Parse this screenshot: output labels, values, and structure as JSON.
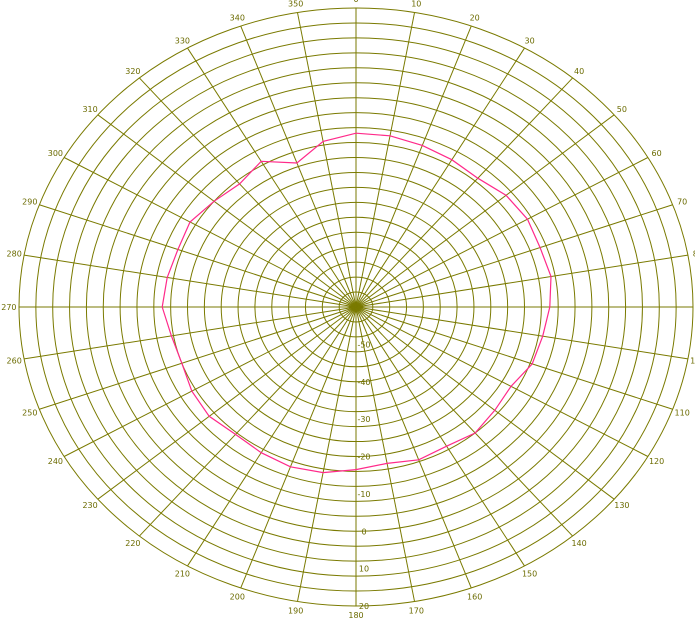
{
  "chart_data": {
    "type": "polar-line",
    "angular_ticks": [
      "0",
      "10",
      "20",
      "30",
      "40",
      "50",
      "60",
      "70",
      "80",
      "90",
      "100",
      "110",
      "120",
      "130",
      "140",
      "150",
      "160",
      "170",
      "180",
      "190",
      "200",
      "210",
      "220",
      "230",
      "240",
      "250",
      "260",
      "270",
      "280",
      "290",
      "300",
      "310",
      "320",
      "330",
      "340",
      "350"
    ],
    "angular_tick_values": [
      0,
      10,
      20,
      30,
      40,
      50,
      60,
      70,
      80,
      90,
      100,
      110,
      120,
      130,
      140,
      150,
      160,
      170,
      180,
      190,
      200,
      210,
      220,
      230,
      240,
      250,
      260,
      270,
      280,
      290,
      300,
      310,
      320,
      330,
      340,
      350
    ],
    "radial_ticks": [
      "-50",
      "-40",
      "-30",
      "-20",
      "-10",
      "0",
      "10",
      "20"
    ],
    "radial_tick_values": [
      -50,
      -40,
      -30,
      -20,
      -10,
      0,
      10,
      20
    ],
    "rlim": [
      -60,
      20
    ],
    "rings": 20,
    "spokes_every_deg": 10,
    "grid": true,
    "colors": {
      "grid": "#7a7a00",
      "series": "#ff2a8a"
    },
    "series": [
      {
        "name": "",
        "angles": [
          0,
          10,
          20,
          30,
          40,
          50,
          60,
          70,
          80,
          90,
          100,
          110,
          120,
          130,
          140,
          150,
          160,
          170,
          180,
          190,
          200,
          210,
          220,
          230,
          240,
          250,
          260,
          270,
          280,
          290,
          300,
          310,
          320,
          330,
          340,
          350,
          360
        ],
        "values": [
          -13.5,
          -13.5,
          -14.0,
          -14.5,
          -15.0,
          -13.5,
          -13.0,
          -13.5,
          -13.0,
          -14.0,
          -15.0,
          -15.5,
          -17.5,
          -17.0,
          -16.0,
          -17.0,
          -16.5,
          -17.5,
          -16.5,
          -15.0,
          -14.5,
          -15.0,
          -15.5,
          -14.5,
          -15.0,
          -16.0,
          -15.5,
          -14.0,
          -14.5,
          -15.0,
          -14.5,
          -16.0,
          -17.0,
          -15.0,
          -19.0,
          -15.0,
          -13.5
        ]
      }
    ]
  }
}
